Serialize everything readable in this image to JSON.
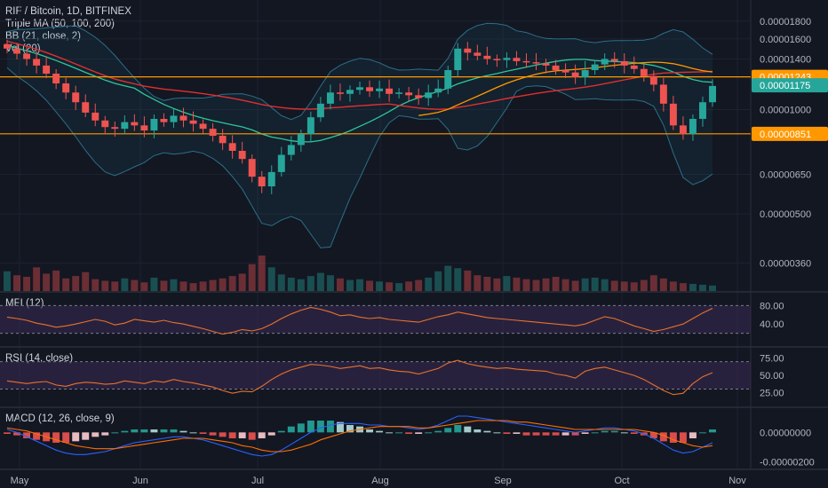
{
  "legend": {
    "symbol": "RIF / Bitcoin, 1D, BITFINEX",
    "triple_ma": "Triple MA (50, 100, 200)",
    "bb": "BB (21, close, 2)",
    "vol": "Vol (20)"
  },
  "panes": {
    "mfi": "MFI (12)",
    "rsi": "RSI (14, close)",
    "macd": "MACD (12, 26, close, 9)"
  },
  "colors": {
    "background": "#131722",
    "up": "#26a69a",
    "down": "#ef5350",
    "ma_fast": "#2dc79a",
    "ma_mid": "#ff9800",
    "ma_slow": "#e03030",
    "resistance": "#ff9800",
    "oscillator_line": "#e8722a",
    "oscillator_band": "#3b2a55",
    "price_tag": "#26a69a",
    "level_tag": "#ff9800"
  },
  "chart_data": {
    "type": "candlestick",
    "x_labels": [
      "May",
      "Jun",
      "Jul",
      "Aug",
      "Sep",
      "Oct",
      "Nov"
    ],
    "price_axis": {
      "ticks": [
        "0.00001800",
        "0.00001600",
        "0.00001400",
        "0.00001000",
        "0.00000650",
        "0.00000500",
        "0.00000360"
      ],
      "scale": "log"
    },
    "horizontal_levels": [
      {
        "label": "0.00001243",
        "value": 1.243e-05
      },
      {
        "label": "0.00000851",
        "value": 8.51e-06
      }
    ],
    "last_price": {
      "label": "0.00001175",
      "value": 1.175e-05
    },
    "close_series": [
      1.5e-05,
      1.45e-05,
      1.4e-05,
      1.34e-05,
      1.27e-05,
      1.19e-05,
      1.12e-05,
      1.05e-05,
      9.8e-06,
      9.3e-06,
      8.9e-06,
      8.8e-06,
      9.2e-06,
      9e-06,
      8.7e-06,
      9.4e-06,
      9.2e-06,
      9.6e-06,
      9.3e-06,
      9.1e-06,
      8.8e-06,
      8.4e-06,
      8e-06,
      7.6e-06,
      7.2e-06,
      6.4e-06,
      6e-06,
      6.6e-06,
      7.4e-06,
      7.9e-06,
      8.5e-06,
      9.5e-06,
      1.04e-05,
      1.12e-05,
      1.11e-05,
      1.14e-05,
      1.16e-05,
      1.13e-05,
      1.15e-05,
      1.11e-05,
      1.12e-05,
      1.1e-05,
      1.08e-05,
      1.12e-05,
      1.15e-05,
      1.3e-05,
      1.5e-05,
      1.46e-05,
      1.43e-05,
      1.4e-05,
      1.39e-05,
      1.41e-05,
      1.38e-05,
      1.37e-05,
      1.36e-05,
      1.34e-05,
      1.3e-05,
      1.28e-05,
      1.24e-05,
      1.3e-05,
      1.35e-05,
      1.4e-05,
      1.38e-05,
      1.34e-05,
      1.31e-05,
      1.25e-05,
      1.18e-05,
      1.04e-05,
      9e-06,
      8.5e-06,
      9.4e-06,
      1.05e-05,
      1.17e-05
    ],
    "volume_series": [
      2.5,
      2.0,
      1.8,
      3.0,
      2.2,
      2.6,
      1.6,
      1.9,
      2.4,
      1.5,
      1.3,
      1.2,
      1.6,
      1.4,
      1.1,
      1.7,
      1.3,
      1.5,
      1.2,
      1.0,
      1.2,
      1.4,
      1.6,
      1.9,
      2.2,
      3.4,
      4.5,
      3.0,
      2.1,
      1.7,
      1.5,
      1.9,
      2.3,
      2.0,
      1.6,
      1.4,
      1.5,
      1.3,
      1.2,
      1.1,
      1.0,
      1.2,
      1.4,
      1.7,
      2.5,
      3.2,
      2.9,
      2.6,
      2.0,
      1.8,
      1.6,
      1.9,
      1.7,
      1.5,
      1.4,
      1.6,
      1.8,
      1.5,
      1.3,
      1.6,
      1.7,
      1.5,
      1.3,
      1.2,
      1.1,
      1.4,
      2.0,
      1.6,
      1.2,
      1.0,
      0.9,
      0.8,
      0.7
    ],
    "mfi": {
      "ticks": [
        "80.00",
        "40.00"
      ],
      "upper": 80,
      "lower": 20,
      "values": [
        55,
        52,
        48,
        42,
        38,
        33,
        36,
        40,
        45,
        50,
        46,
        38,
        42,
        50,
        47,
        44,
        48,
        43,
        40,
        35,
        30,
        24,
        18,
        22,
        28,
        25,
        30,
        40,
        52,
        62,
        70,
        76,
        72,
        66,
        58,
        60,
        55,
        52,
        54,
        50,
        48,
        46,
        44,
        50,
        56,
        60,
        66,
        62,
        58,
        54,
        52,
        50,
        48,
        46,
        44,
        42,
        40,
        38,
        36,
        40,
        48,
        56,
        52,
        44,
        36,
        30,
        24,
        28,
        34,
        40,
        52,
        64,
        74
      ]
    },
    "rsi": {
      "ticks": [
        "75.00",
        "50.00",
        "25.00"
      ],
      "upper": 70,
      "lower": 30,
      "values": [
        42,
        40,
        38,
        40,
        41,
        36,
        34,
        38,
        40,
        39,
        37,
        38,
        42,
        40,
        38,
        42,
        40,
        44,
        41,
        39,
        36,
        33,
        28,
        24,
        27,
        26,
        34,
        44,
        52,
        58,
        62,
        66,
        65,
        63,
        60,
        62,
        64,
        60,
        61,
        58,
        56,
        55,
        52,
        56,
        60,
        68,
        72,
        67,
        64,
        62,
        60,
        61,
        59,
        58,
        57,
        56,
        52,
        50,
        46,
        56,
        60,
        62,
        58,
        54,
        50,
        44,
        36,
        28,
        22,
        24,
        38,
        48,
        54
      ]
    },
    "macd": {
      "ticks": [
        "0.00000000",
        "-0.00000200"
      ],
      "macd_line": [
        0.2,
        0.0,
        -0.3,
        -0.6,
        -0.9,
        -1.2,
        -1.4,
        -1.5,
        -1.5,
        -1.4,
        -1.3,
        -1.1,
        -0.9,
        -0.7,
        -0.6,
        -0.5,
        -0.4,
        -0.3,
        -0.3,
        -0.4,
        -0.5,
        -0.7,
        -0.9,
        -1.1,
        -1.3,
        -1.5,
        -1.6,
        -1.5,
        -1.2,
        -0.8,
        -0.4,
        0.0,
        0.3,
        0.5,
        0.6,
        0.6,
        0.6,
        0.5,
        0.5,
        0.4,
        0.4,
        0.3,
        0.2,
        0.3,
        0.5,
        0.8,
        1.1,
        1.1,
        1.0,
        0.9,
        0.8,
        0.7,
        0.6,
        0.5,
        0.4,
        0.3,
        0.2,
        0.1,
        0.0,
        0.1,
        0.2,
        0.3,
        0.3,
        0.2,
        0.1,
        -0.1,
        -0.4,
        -0.8,
        -1.2,
        -1.4,
        -1.3,
        -1.0,
        -0.7
      ],
      "signal_line": [
        0.3,
        0.2,
        0.1,
        -0.1,
        -0.3,
        -0.5,
        -0.7,
        -0.9,
        -1.0,
        -1.1,
        -1.1,
        -1.1,
        -1.0,
        -0.9,
        -0.8,
        -0.7,
        -0.6,
        -0.5,
        -0.4,
        -0.4,
        -0.4,
        -0.5,
        -0.6,
        -0.7,
        -0.9,
        -1.0,
        -1.2,
        -1.3,
        -1.3,
        -1.2,
        -1.0,
        -0.8,
        -0.5,
        -0.3,
        -0.1,
        0.1,
        0.2,
        0.3,
        0.4,
        0.4,
        0.4,
        0.4,
        0.3,
        0.3,
        0.4,
        0.5,
        0.6,
        0.7,
        0.8,
        0.8,
        0.8,
        0.8,
        0.7,
        0.7,
        0.6,
        0.5,
        0.4,
        0.3,
        0.2,
        0.2,
        0.2,
        0.2,
        0.2,
        0.2,
        0.2,
        0.1,
        0.0,
        -0.2,
        -0.5,
        -0.7,
        -0.9,
        -1.0,
        -0.9
      ]
    }
  }
}
